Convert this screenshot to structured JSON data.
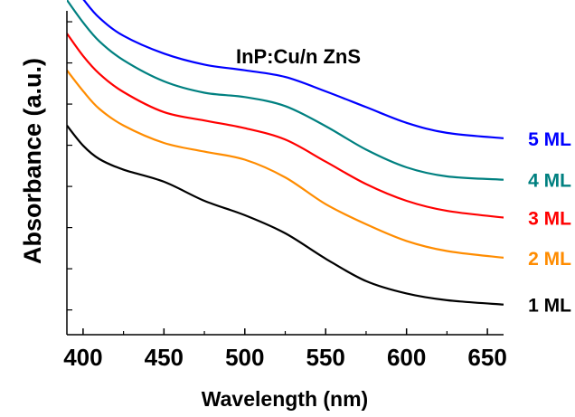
{
  "chart_data": {
    "type": "line",
    "title": "InP:Cu/n ZnS",
    "xlabel": "Wavelength (nm)",
    "ylabel": "Absorbance (a.u.)",
    "xlim": [
      390,
      660
    ],
    "ylim": [
      0,
      1
    ],
    "xticks": [
      400,
      450,
      500,
      550,
      600,
      650
    ],
    "xtick_labels": [
      "400",
      "450",
      "500",
      "550",
      "600",
      "650"
    ],
    "yticks": [
      0.074,
      0.197,
      0.32,
      0.443,
      0.566,
      0.689,
      0.812,
      0.935
    ],
    "ytick_labels_shown": false,
    "grid": false,
    "legend": "right end of each curve",
    "series": [
      {
        "name": "1 ML",
        "color": "#000000",
        "x": [
          390,
          400,
          410,
          425,
          450,
          475,
          500,
          525,
          550,
          575,
          600,
          625,
          660
        ],
        "y": [
          0.625,
          0.565,
          0.525,
          0.493,
          0.457,
          0.4,
          0.357,
          0.303,
          0.227,
          0.16,
          0.123,
          0.103,
          0.09
        ]
      },
      {
        "name": "2 ML",
        "color": "#ff8c00",
        "x": [
          390,
          400,
          410,
          425,
          450,
          475,
          500,
          525,
          550,
          575,
          600,
          625,
          660
        ],
        "y": [
          0.79,
          0.728,
          0.675,
          0.625,
          0.573,
          0.547,
          0.523,
          0.47,
          0.39,
          0.33,
          0.28,
          0.25,
          0.23
        ]
      },
      {
        "name": "3 ML",
        "color": "#ff0000",
        "x": [
          390,
          400,
          410,
          425,
          450,
          475,
          500,
          525,
          550,
          575,
          600,
          625,
          660
        ],
        "y": [
          0.9,
          0.833,
          0.78,
          0.725,
          0.665,
          0.64,
          0.617,
          0.583,
          0.517,
          0.45,
          0.4,
          0.37,
          0.35
        ]
      },
      {
        "name": "4 ML",
        "color": "#008080",
        "x": [
          390,
          400,
          410,
          425,
          450,
          475,
          500,
          525,
          550,
          575,
          600,
          625,
          660
        ],
        "y": [
          1.0,
          0.933,
          0.877,
          0.82,
          0.757,
          0.723,
          0.71,
          0.683,
          0.623,
          0.553,
          0.5,
          0.473,
          0.463
        ]
      },
      {
        "name": "5 ML",
        "color": "#0000ff",
        "x": [
          390,
          400,
          410,
          425,
          450,
          475,
          500,
          525,
          550,
          575,
          600,
          625,
          660
        ],
        "y": [
          1.067,
          1.003,
          0.947,
          0.893,
          0.84,
          0.807,
          0.79,
          0.77,
          0.727,
          0.68,
          0.633,
          0.603,
          0.587
        ]
      }
    ]
  }
}
